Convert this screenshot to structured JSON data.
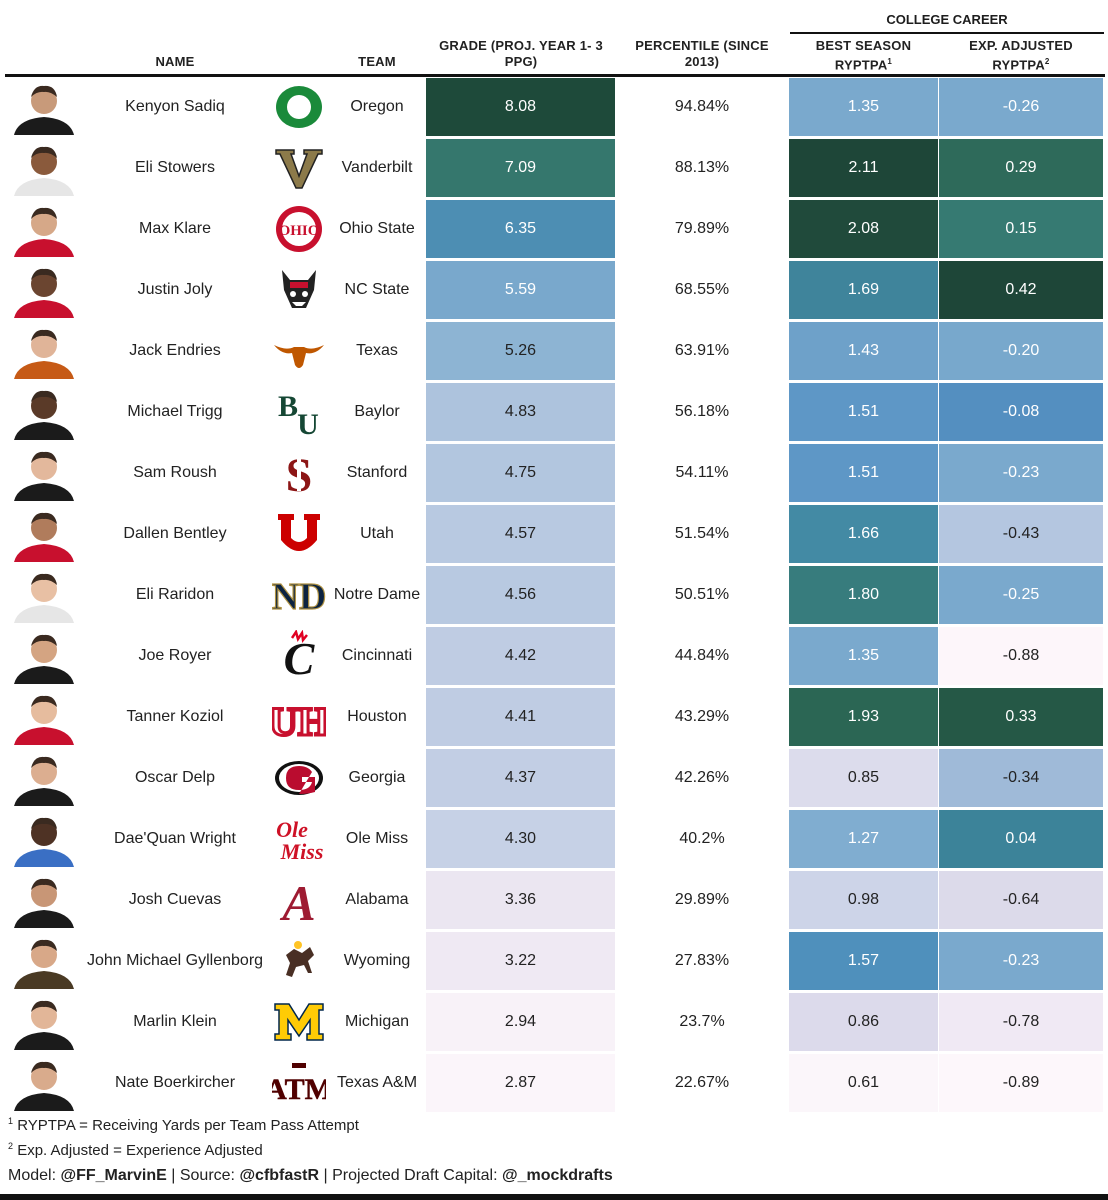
{
  "headers": {
    "name": "NAME",
    "team": "TEAM",
    "grade": "GRADE (PROJ. YEAR 1- 3 PPG)",
    "percentile": "PERCENTILE (SINCE 2013)",
    "group": "COLLEGE CAREER",
    "best": "BEST SEASON RYPTPA",
    "best_sup": "1",
    "exp": "EXP. ADJUSTED RYPTPA",
    "exp_sup": "2"
  },
  "colors": {
    "text_light": "#ffffff",
    "text_dark": "#222222",
    "header_rule": "#111111"
  },
  "chart_data": {
    "type": "table",
    "columns": [
      "NAME",
      "TEAM",
      "GRADE (PROJ. YEAR 1- 3 PPG)",
      "PERCENTILE (SINCE 2013)",
      "BEST SEASON RYPTPA",
      "EXP. ADJUSTED RYPTPA"
    ],
    "rows": [
      {
        "name": "Kenyon Sadiq",
        "team": "Oregon",
        "grade": "8.08",
        "pct": "94.84%",
        "best": "1.35",
        "exp": "-0.26",
        "grade_bg": "#1e4a3a",
        "best_bg": "#7aa9cd",
        "exp_bg": "#7aa9cd",
        "logo": "oregon-o"
      },
      {
        "name": "Eli Stowers",
        "team": "Vanderbilt",
        "grade": "7.09",
        "pct": "88.13%",
        "best": "2.11",
        "exp": "0.29",
        "grade_bg": "#35776d",
        "best_bg": "#1e4638",
        "exp_bg": "#2e6a5a",
        "logo": "vanderbilt-v"
      },
      {
        "name": "Max Klare",
        "team": "Ohio State",
        "grade": "6.35",
        "pct": "79.89%",
        "best": "2.08",
        "exp": "0.15",
        "grade_bg": "#4d8eb3",
        "best_bg": "#204a3b",
        "exp_bg": "#367a72",
        "logo": "ohio-state-block"
      },
      {
        "name": "Justin Joly",
        "team": "NC State",
        "grade": "5.59",
        "pct": "68.55%",
        "best": "1.69",
        "exp": "0.42",
        "grade_bg": "#79a8cc",
        "best_bg": "#3f849b",
        "exp_bg": "#1e4638",
        "logo": "wolf-head"
      },
      {
        "name": "Jack Endries",
        "team": "Texas",
        "grade": "5.26",
        "pct": "63.91%",
        "best": "1.43",
        "exp": "-0.20",
        "grade_bg": "#8db4d3",
        "best_bg": "#6ea1c9",
        "exp_bg": "#78a8cc",
        "logo": "longhorn"
      },
      {
        "name": "Michael Trigg",
        "team": "Baylor",
        "grade": "4.83",
        "pct": "56.18%",
        "best": "1.51",
        "exp": "-0.08",
        "grade_bg": "#adc3dd",
        "best_bg": "#5e97c6",
        "exp_bg": "#548fc0",
        "logo": "baylor-bu"
      },
      {
        "name": "Sam Roush",
        "team": "Stanford",
        "grade": "4.75",
        "pct": "54.11%",
        "best": "1.51",
        "exp": "-0.23",
        "grade_bg": "#b2c6df",
        "best_bg": "#5e97c6",
        "exp_bg": "#7aa9cd",
        "logo": "stanford-s"
      },
      {
        "name": "Dallen Bentley",
        "team": "Utah",
        "grade": "4.57",
        "pct": "51.54%",
        "best": "1.66",
        "exp": "-0.43",
        "grade_bg": "#b8c9e1",
        "best_bg": "#438aa4",
        "exp_bg": "#b4c6e0",
        "logo": "utah-u"
      },
      {
        "name": "Eli Raridon",
        "team": "Notre Dame",
        "grade": "4.56",
        "pct": "50.51%",
        "best": "1.80",
        "exp": "-0.25",
        "grade_bg": "#b8c9e1",
        "best_bg": "#377c7d",
        "exp_bg": "#7aa9cd",
        "logo": "notre-dame-nd"
      },
      {
        "name": "Joe Royer",
        "team": "Cincinnati",
        "grade": "4.42",
        "pct": "44.84%",
        "best": "1.35",
        "exp": "-0.88",
        "grade_bg": "#bfcce3",
        "best_bg": "#7aa9cd",
        "exp_bg": "#fdf6fa",
        "logo": "cincinnati-c"
      },
      {
        "name": "Tanner Koziol",
        "team": "Houston",
        "grade": "4.41",
        "pct": "43.29%",
        "best": "1.93",
        "exp": "0.33",
        "grade_bg": "#bfcce3",
        "best_bg": "#2b6654",
        "exp_bg": "#255846",
        "logo": "houston-uh"
      },
      {
        "name": "Oscar Delp",
        "team": "Georgia",
        "grade": "4.37",
        "pct": "42.26%",
        "best": "0.85",
        "exp": "-0.34",
        "grade_bg": "#c2cee4",
        "best_bg": "#dcdcec",
        "exp_bg": "#9fbad8",
        "logo": "georgia-g"
      },
      {
        "name": "Dae'Quan Wright",
        "team": "Ole Miss",
        "grade": "4.30",
        "pct": "40.2%",
        "best": "1.27",
        "exp": "0.04",
        "grade_bg": "#c6d1e6",
        "best_bg": "#80add0",
        "exp_bg": "#3c8399",
        "logo": "ole-miss-script"
      },
      {
        "name": "Josh Cuevas",
        "team": "Alabama",
        "grade": "3.36",
        "pct": "29.89%",
        "best": "0.98",
        "exp": "-0.64",
        "grade_bg": "#ebe6f1",
        "best_bg": "#cdd4e8",
        "exp_bg": "#dcdaea",
        "logo": "alabama-a"
      },
      {
        "name": "John Michael Gyllenborg",
        "team": "Wyoming",
        "grade": "3.22",
        "pct": "27.83%",
        "best": "1.57",
        "exp": "-0.23",
        "grade_bg": "#efe9f3",
        "best_bg": "#4f90bc",
        "exp_bg": "#7aa9cd",
        "logo": "bucking-horse"
      },
      {
        "name": "Marlin Klein",
        "team": "Michigan",
        "grade": "2.94",
        "pct": "23.7%",
        "best": "0.86",
        "exp": "-0.78",
        "grade_bg": "#f8f2f8",
        "best_bg": "#dcdaeb",
        "exp_bg": "#f0e9f4",
        "logo": "michigan-m"
      },
      {
        "name": "Nate Boerkircher",
        "team": "Texas A&M",
        "grade": "2.87",
        "pct": "22.67%",
        "best": "0.61",
        "exp": "-0.89",
        "grade_bg": "#fbf5fa",
        "best_bg": "#fbf6fa",
        "exp_bg": "#fdf7fb",
        "logo": "texas-am-atm"
      }
    ]
  },
  "footnotes": {
    "n1_mark": "1",
    "n1_text": "RYPTPA = Receiving Yards per Team Pass Attempt",
    "n2_mark": "2",
    "n2_text": "Exp. Adjusted = Experience Adjusted",
    "credits_model_label": "Model:",
    "credits_model": "@FF_MarvinE",
    "credits_source_label": "Source:",
    "credits_source": "@cfbfastR",
    "credits_capital_label": "Projected Draft Capital:",
    "credits_capital": "@_mockdrafts",
    "sep": "|"
  }
}
